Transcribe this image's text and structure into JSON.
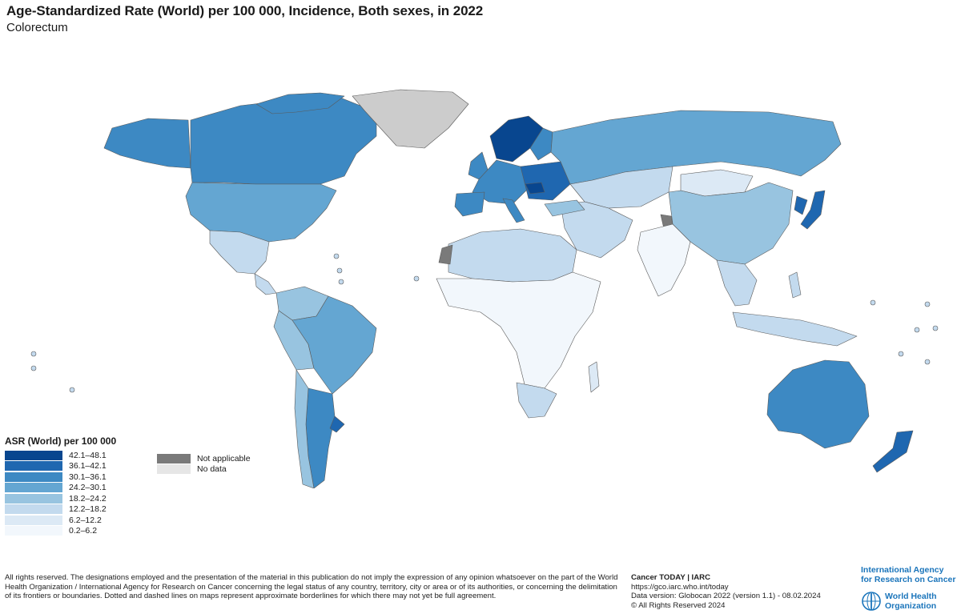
{
  "header": {
    "title": "Age-Standardized Rate (World) per 100 000, Incidence, Both sexes, in 2022",
    "subtitle": "Colorectum"
  },
  "legend": {
    "title": "ASR (World) per 100 000",
    "classes": [
      {
        "label": "42.1–48.1",
        "color": "#08468f"
      },
      {
        "label": "36.1–42.1",
        "color": "#1f67b0"
      },
      {
        "label": "30.1–36.1",
        "color": "#3d89c3"
      },
      {
        "label": "24.2–30.1",
        "color": "#64a6d2"
      },
      {
        "label": "18.2–24.2",
        "color": "#98c4e0"
      },
      {
        "label": "12.2–18.2",
        "color": "#c3daee"
      },
      {
        "label": "6.2–12.2",
        "color": "#dce9f5"
      },
      {
        "label": "0.2–6.2",
        "color": "#f2f7fc"
      }
    ],
    "not_applicable": {
      "label": "Not applicable",
      "color": "#7a7a7a"
    },
    "no_data": {
      "label": "No data",
      "color": "#e6e6e6"
    }
  },
  "map": {
    "greenland_color": "#cccccc",
    "border_color": "#5a5a5a"
  },
  "footer": {
    "disclaimer": "All rights reserved. The designations employed and the presentation of the material in this publication do not imply the expression of any opinion whatsoever on the part of the World Health Organization / International Agency for Research on Cancer concerning the legal status of any country, territory, city or area or of its authorities, or concerning the delimitation of its frontiers or boundaries. Dotted and dashed lines on maps represent approximate borderlines for which there may not yet be full agreement.",
    "brand": "Cancer TODAY | IARC",
    "url": "https://gco.iarc.who.int/today",
    "version": "Data version: Globocan 2022 (version 1.1) - 08.02.2024",
    "copyright": "© All Rights Reserved 2024"
  },
  "logos": {
    "iarc_line1": "International Agency",
    "iarc_line2": "for Research on Cancer",
    "who_line1": "World Health",
    "who_line2": "Organization"
  }
}
